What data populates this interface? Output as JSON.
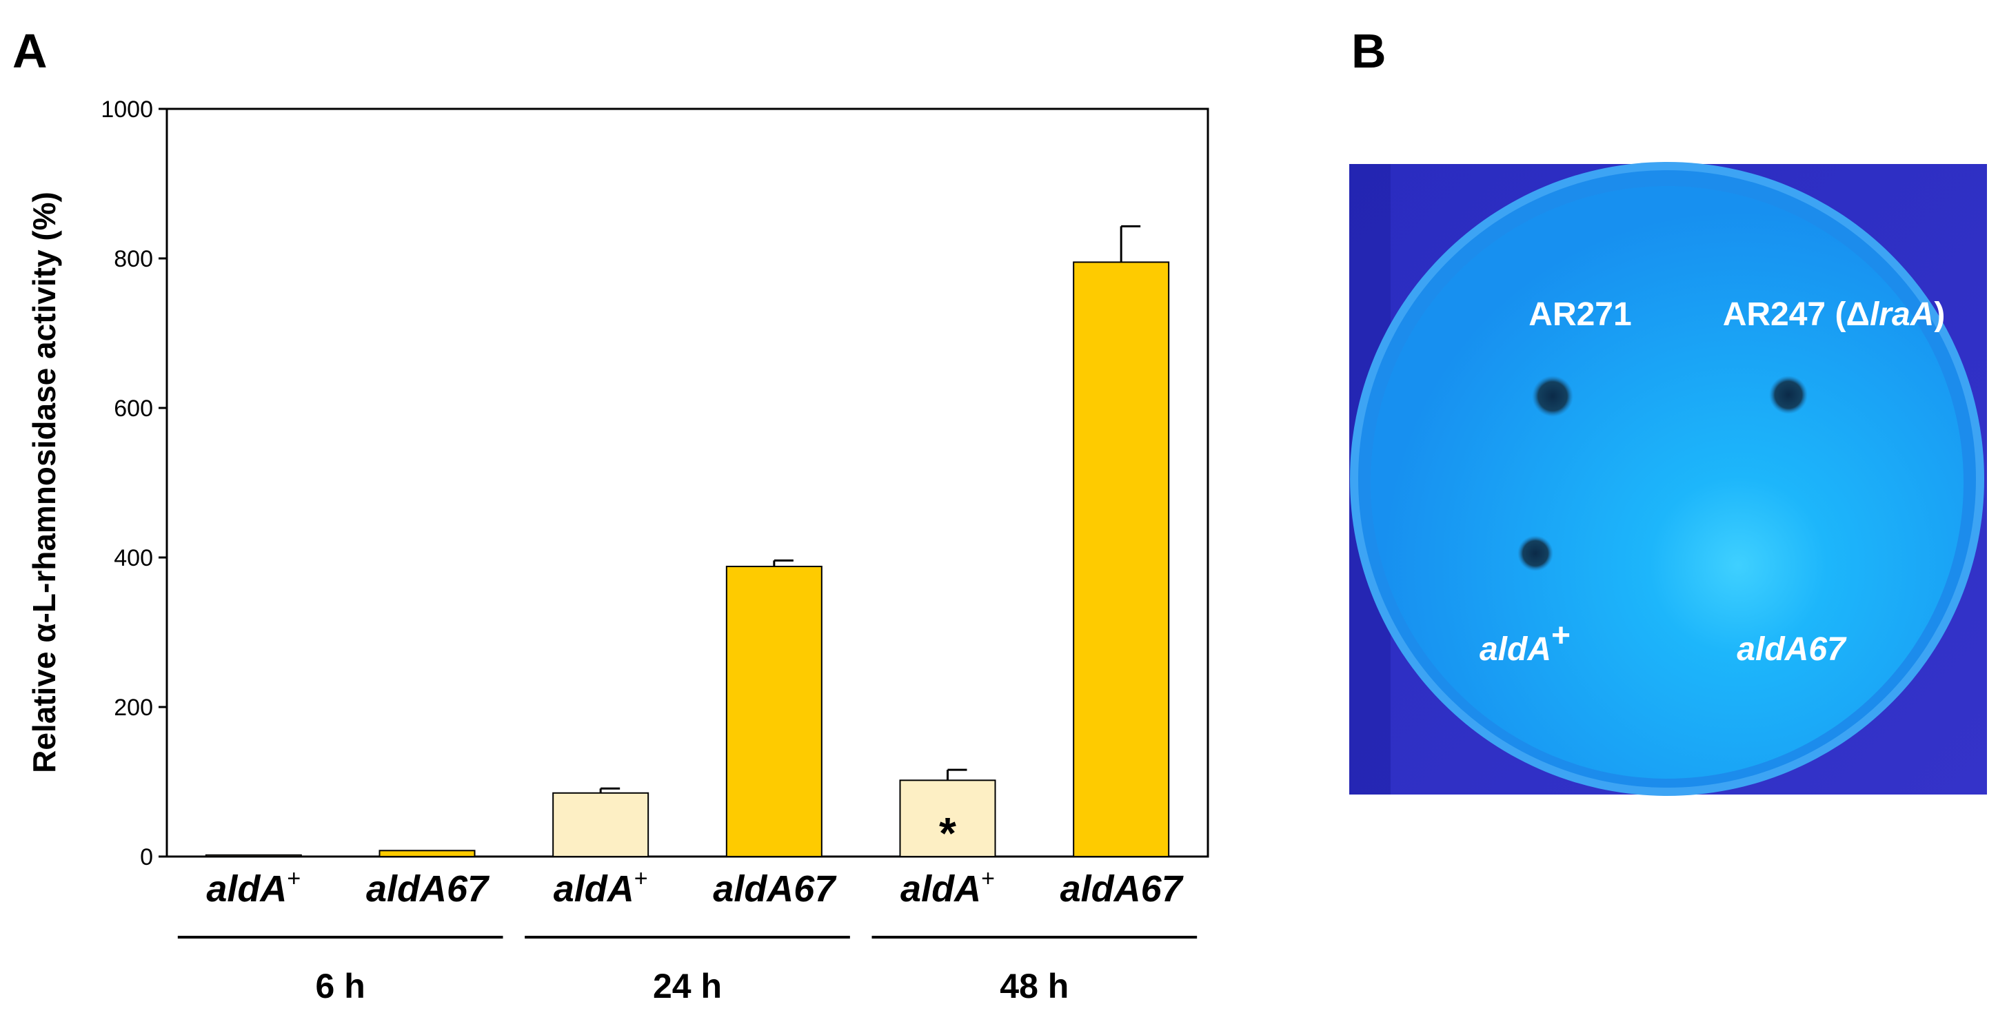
{
  "panel_a_label": "A",
  "panel_b_label": "B",
  "chart_data": {
    "type": "bar",
    "title": "",
    "xlabel": "",
    "ylabel": "Relative α-L-rhamnosidase activity (%)",
    "ylim": [
      0,
      1000
    ],
    "yticks": [
      "0",
      "200",
      "400",
      "600",
      "800",
      "1000"
    ],
    "grid": false,
    "categories": [
      {
        "name": "aldA",
        "sup": "+",
        "group": "6 h",
        "value": 2,
        "error": 0,
        "color": "#fdefc4"
      },
      {
        "name": "aldA67",
        "sup": "",
        "group": "6 h",
        "value": 8,
        "error": 0,
        "color": "#fecb00"
      },
      {
        "name": "aldA",
        "sup": "+",
        "group": "24 h",
        "value": 85,
        "error": 6,
        "color": "#fdefc4"
      },
      {
        "name": "aldA67",
        "sup": "",
        "group": "24 h",
        "value": 388,
        "error": 8,
        "color": "#fecb00"
      },
      {
        "name": "aldA",
        "sup": "+",
        "group": "48 h",
        "value": 102,
        "error": 14,
        "color": "#fdefc4",
        "annotation": "*"
      },
      {
        "name": "aldA67",
        "sup": "",
        "group": "48 h",
        "value": 795,
        "error": 48,
        "color": "#fecb00"
      }
    ],
    "groups": [
      "6 h",
      "24 h",
      "48 h"
    ]
  },
  "plate": {
    "strain_left": "AR271",
    "strain_right_prefix": "AR247 (Δ",
    "strain_right_gene": "lraA",
    "strain_right_suffix": ")",
    "label_left": "aldA",
    "label_left_sup": "+",
    "label_right": "aldA67",
    "background_color": "#2d2fc4",
    "plate_color": "#1aa6f5"
  }
}
